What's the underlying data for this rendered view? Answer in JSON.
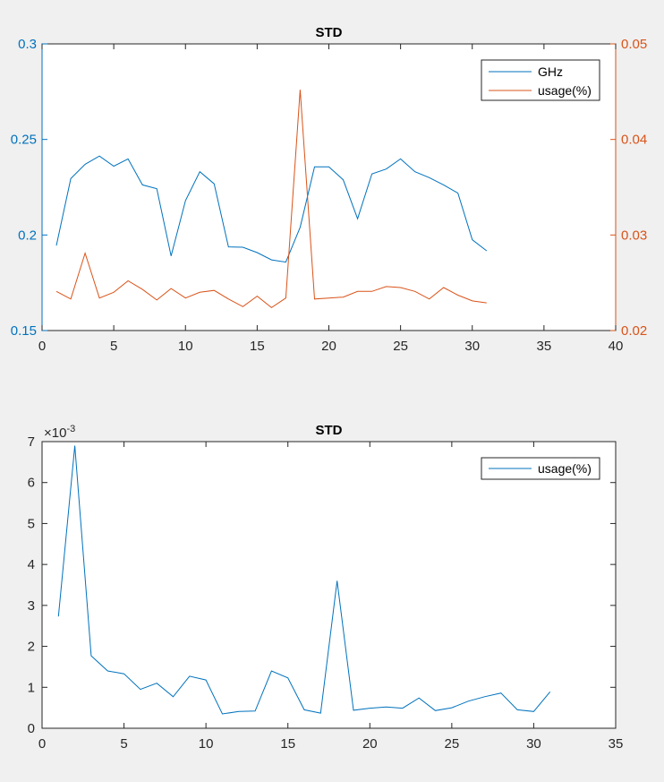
{
  "colors": {
    "figure_bg": "#f0f0f0",
    "axes_bg": "#ffffff",
    "axis": "#262626",
    "series_blue": "#0072bd",
    "series_orange": "#d95319"
  },
  "chart_data": [
    {
      "type": "line",
      "title": "STD",
      "xlim": [
        0,
        40
      ],
      "xticks": [
        0,
        5,
        10,
        15,
        20,
        25,
        30,
        35,
        40
      ],
      "legend_position": "top-right",
      "left_axis": {
        "ylim": [
          0.15,
          0.3
        ],
        "ticks": [
          0.15,
          0.2,
          0.25,
          0.3
        ],
        "tick_labels": [
          "0.15",
          "0.2",
          "0.25",
          "0.3"
        ]
      },
      "right_axis": {
        "ylim": [
          0.02,
          0.05
        ],
        "ticks": [
          0.02,
          0.03,
          0.04,
          0.05
        ],
        "tick_labels": [
          "0.02",
          "0.03",
          "0.04",
          "0.05"
        ]
      },
      "series": [
        {
          "name": "GHz",
          "axis": "left",
          "x": [
            1,
            2,
            3,
            4,
            5,
            6,
            7,
            8,
            9,
            10,
            11,
            12,
            13,
            14,
            15,
            16,
            17,
            18,
            19,
            20,
            21,
            22,
            23,
            24,
            25,
            26,
            27,
            28,
            29,
            30,
            31
          ],
          "values": [
            0.1945,
            0.2295,
            0.237,
            0.2413,
            0.236,
            0.2398,
            0.2262,
            0.2242,
            0.189,
            0.218,
            0.2331,
            0.2268,
            0.1938,
            0.1936,
            0.1908,
            0.187,
            0.1858,
            0.204,
            0.2357,
            0.2357,
            0.2289,
            0.2085,
            0.232,
            0.2345,
            0.2398,
            0.2331,
            0.23,
            0.2262,
            0.2219,
            0.1975,
            0.1917
          ]
        },
        {
          "name": "usage(%)",
          "axis": "right",
          "x": [
            1,
            2,
            3,
            4,
            5,
            6,
            7,
            8,
            9,
            10,
            11,
            12,
            13,
            14,
            15,
            16,
            17,
            18,
            19,
            20,
            21,
            22,
            23,
            24,
            25,
            26,
            27,
            28,
            29,
            30,
            31
          ],
          "values": [
            0.0241,
            0.0233,
            0.0281,
            0.0234,
            0.024,
            0.0252,
            0.0243,
            0.0232,
            0.0244,
            0.0234,
            0.024,
            0.0242,
            0.0233,
            0.0225,
            0.0236,
            0.0224,
            0.0234,
            0.0452,
            0.0233,
            0.0234,
            0.0235,
            0.0241,
            0.0241,
            0.0246,
            0.0245,
            0.0241,
            0.0233,
            0.0245,
            0.0237,
            0.0231,
            0.0229
          ]
        }
      ]
    },
    {
      "type": "line",
      "title": "STD",
      "xlim": [
        0,
        35
      ],
      "xticks": [
        0,
        5,
        10,
        15,
        20,
        25,
        30,
        35
      ],
      "ylim": [
        0,
        7
      ],
      "yticks": [
        0,
        1,
        2,
        3,
        4,
        5,
        6,
        7
      ],
      "ytick_labels": [
        "0",
        "1",
        "2",
        "3",
        "4",
        "5",
        "6",
        "7"
      ],
      "exponent_label": "×10",
      "exponent_power": "-3",
      "legend_position": "top-right",
      "series": [
        {
          "name": "usage(%)",
          "x": [
            1,
            2,
            3,
            4,
            5,
            6,
            7,
            8,
            9,
            10,
            11,
            12,
            13,
            14,
            15,
            16,
            17,
            18,
            19,
            20,
            21,
            22,
            23,
            24,
            25,
            26,
            27,
            28,
            29,
            30,
            31
          ],
          "values": [
            2.73,
            6.9,
            1.77,
            1.4,
            1.33,
            0.95,
            1.1,
            0.77,
            1.27,
            1.18,
            0.35,
            0.41,
            0.42,
            1.4,
            1.23,
            0.45,
            0.37,
            3.6,
            0.44,
            0.49,
            0.52,
            0.49,
            0.74,
            0.43,
            0.5,
            0.66,
            0.77,
            0.86,
            0.45,
            0.41,
            0.89
          ]
        }
      ]
    }
  ]
}
